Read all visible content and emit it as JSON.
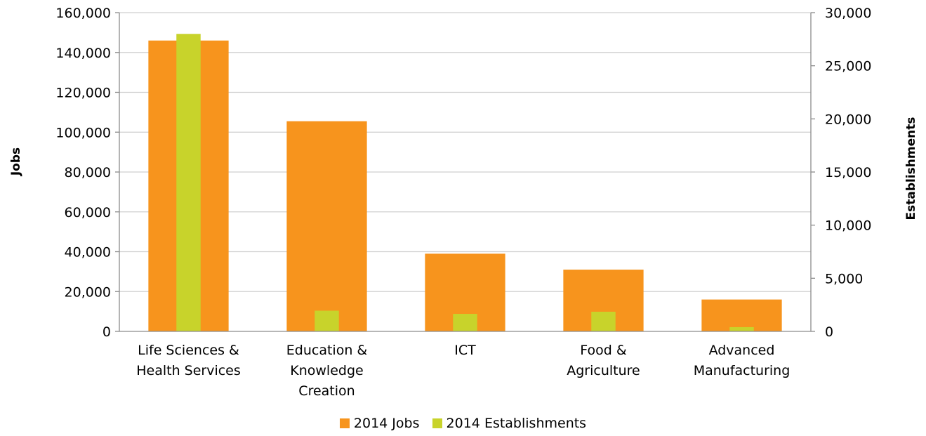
{
  "chart_data": {
    "type": "bar",
    "categories": [
      [
        "Life Sciences &",
        "Health Services"
      ],
      [
        "Education &",
        "Knowledge",
        "Creation"
      ],
      [
        "ICT"
      ],
      [
        "Food &",
        "Agriculture"
      ],
      [
        "Advanced",
        "Manufacturing"
      ]
    ],
    "series": [
      {
        "name": "2014 Jobs",
        "axis": "left",
        "color": "#F7941D",
        "values": [
          146000,
          105500,
          39000,
          31000,
          16000
        ]
      },
      {
        "name": "2014 Establishments",
        "axis": "right",
        "color": "#C8D32B",
        "values": [
          28000,
          1950,
          1650,
          1850,
          400
        ]
      }
    ],
    "ylabel": "Jobs",
    "y2label": "Establishments",
    "ylim": [
      0,
      160000
    ],
    "y2lim": [
      0,
      30000
    ],
    "yticks": [
      "0",
      "20,000",
      "40,000",
      "60,000",
      "80,000",
      "100,000",
      "120,000",
      "140,000",
      "160,000"
    ],
    "y2ticks": [
      "0",
      "5,000",
      "10,000",
      "15,000",
      "20,000",
      "25,000",
      "30,000"
    ],
    "grid": true,
    "legend_position": "bottom"
  }
}
